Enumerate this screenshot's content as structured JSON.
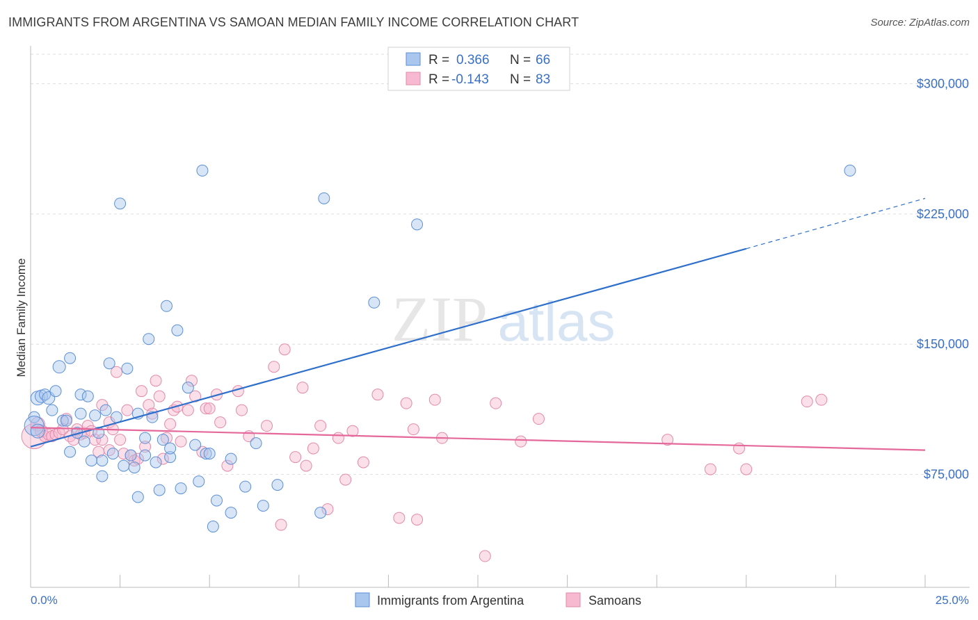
{
  "title": "IMMIGRANTS FROM ARGENTINA VS SAMOAN MEDIAN FAMILY INCOME CORRELATION CHART",
  "source": "Source: ZipAtlas.com",
  "watermark": {
    "zip": "ZIP",
    "atlas": "atlas"
  },
  "colors": {
    "blue_fill": "#a9c6ee",
    "blue_stroke": "#5b8fd6",
    "blue_line": "#2e6fcc",
    "pink_fill": "#f6b9cf",
    "pink_stroke": "#e38aa9",
    "pink_line": "#e4689a",
    "axis_label": "#3a6fc4",
    "grid": "#dddddd"
  },
  "legend_top": [
    {
      "r_label": "R =",
      "r_value": "0.366",
      "n_label": "N =",
      "n_value": "66"
    },
    {
      "r_label": "R =",
      "r_value": "-0.143",
      "n_label": "N =",
      "n_value": "83"
    }
  ],
  "chart_data": {
    "type": "scatter",
    "title": "IMMIGRANTS FROM ARGENTINA VS SAMOAN MEDIAN FAMILY INCOME CORRELATION CHART",
    "xlabel": "",
    "ylabel": "Median Family Income",
    "x_tick_labels": [
      "0.0%",
      "25.0%"
    ],
    "y_tick_labels": [
      "$75,000",
      "$150,000",
      "$225,000",
      "$300,000"
    ],
    "y_ticks": [
      75000,
      150000,
      225000,
      300000
    ],
    "xlim": [
      0,
      25
    ],
    "ylim": [
      10000,
      317000
    ],
    "grid": true,
    "legend_position": "bottom",
    "series": [
      {
        "name": "Immigrants from Argentina",
        "color": "blue",
        "R": 0.366,
        "N": 66,
        "trend": {
          "x0": 0.0,
          "y0": 91000,
          "x1": 20.0,
          "y1": 205000,
          "dashed_to_x": 25.0,
          "dashed_to_y": 234000
        },
        "points": [
          [
            0.2,
            119000,
            10
          ],
          [
            0.3,
            120000,
            9
          ],
          [
            0.4,
            121000,
            8
          ],
          [
            0.5,
            119000,
            9
          ],
          [
            0.1,
            108000,
            8
          ],
          [
            0.1,
            103000,
            14
          ],
          [
            0.2,
            100000,
            10
          ],
          [
            0.6,
            112000,
            8
          ],
          [
            0.7,
            123000,
            8
          ],
          [
            0.8,
            137000,
            9
          ],
          [
            0.9,
            106000,
            8
          ],
          [
            1.0,
            106000,
            8
          ],
          [
            1.1,
            142000,
            8
          ],
          [
            1.1,
            88000,
            8
          ],
          [
            1.3,
            99000,
            8
          ],
          [
            1.4,
            121000,
            8
          ],
          [
            1.4,
            110000,
            8
          ],
          [
            1.5,
            94000,
            8
          ],
          [
            1.6,
            120000,
            8
          ],
          [
            1.7,
            83000,
            8
          ],
          [
            1.8,
            109000,
            8
          ],
          [
            1.9,
            99000,
            8
          ],
          [
            2.0,
            83000,
            8
          ],
          [
            2.0,
            74000,
            8
          ],
          [
            2.1,
            112000,
            8
          ],
          [
            2.2,
            139000,
            8
          ],
          [
            2.3,
            87000,
            8
          ],
          [
            2.4,
            108000,
            8
          ],
          [
            2.5,
            231000,
            8
          ],
          [
            2.6,
            80000,
            8
          ],
          [
            2.7,
            136000,
            8
          ],
          [
            2.8,
            86000,
            8
          ],
          [
            2.9,
            79000,
            8
          ],
          [
            3.0,
            110000,
            8
          ],
          [
            3.0,
            62000,
            8
          ],
          [
            3.2,
            86000,
            8
          ],
          [
            3.2,
            96000,
            8
          ],
          [
            3.3,
            153000,
            8
          ],
          [
            3.4,
            108000,
            8
          ],
          [
            3.5,
            82000,
            8
          ],
          [
            3.6,
            66000,
            8
          ],
          [
            3.7,
            95000,
            8
          ],
          [
            3.8,
            172000,
            8
          ],
          [
            3.9,
            85000,
            8
          ],
          [
            3.9,
            90000,
            8
          ],
          [
            4.1,
            158000,
            8
          ],
          [
            4.2,
            67000,
            8
          ],
          [
            4.4,
            125000,
            8
          ],
          [
            4.6,
            92000,
            8
          ],
          [
            4.7,
            71000,
            8
          ],
          [
            4.8,
            250000,
            8
          ],
          [
            4.9,
            87000,
            8
          ],
          [
            5.0,
            87000,
            8
          ],
          [
            5.1,
            45000,
            8
          ],
          [
            5.2,
            60000,
            8
          ],
          [
            5.6,
            53000,
            8
          ],
          [
            5.6,
            84000,
            8
          ],
          [
            6.0,
            68000,
            8
          ],
          [
            6.3,
            93000,
            8
          ],
          [
            6.5,
            57000,
            8
          ],
          [
            6.9,
            69000,
            8
          ],
          [
            8.1,
            53000,
            8
          ],
          [
            8.2,
            234000,
            8
          ],
          [
            9.6,
            174000,
            8
          ],
          [
            10.8,
            219000,
            8
          ],
          [
            22.9,
            250000,
            8
          ]
        ]
      },
      {
        "name": "Samoans",
        "color": "pink",
        "R": -0.143,
        "N": 83,
        "trend": {
          "x0": 0.0,
          "y0": 102000,
          "x1": 25.0,
          "y1": 89000
        },
        "points": [
          [
            0.1,
            97000,
            18
          ],
          [
            0.2,
            104000,
            10
          ],
          [
            0.3,
            100000,
            9
          ],
          [
            0.4,
            97000,
            8
          ],
          [
            0.5,
            98000,
            8
          ],
          [
            0.6,
            97000,
            8
          ],
          [
            0.7,
            98000,
            8
          ],
          [
            0.8,
            99000,
            8
          ],
          [
            0.9,
            101000,
            8
          ],
          [
            1.0,
            107000,
            8
          ],
          [
            1.1,
            97000,
            8
          ],
          [
            1.2,
            95000,
            8
          ],
          [
            1.3,
            101000,
            8
          ],
          [
            1.4,
            98000,
            8
          ],
          [
            1.5,
            99000,
            8
          ],
          [
            1.6,
            103000,
            8
          ],
          [
            1.7,
            100000,
            8
          ],
          [
            1.8,
            95000,
            8
          ],
          [
            1.9,
            88000,
            8
          ],
          [
            2.0,
            95000,
            8
          ],
          [
            2.0,
            115000,
            8
          ],
          [
            2.2,
            105000,
            8
          ],
          [
            2.2,
            89000,
            8
          ],
          [
            2.3,
            101000,
            8
          ],
          [
            2.4,
            134000,
            8
          ],
          [
            2.5,
            95000,
            8
          ],
          [
            2.6,
            87000,
            8
          ],
          [
            2.7,
            112000,
            8
          ],
          [
            2.8,
            86000,
            8
          ],
          [
            2.9,
            83000,
            8
          ],
          [
            3.0,
            84000,
            8
          ],
          [
            3.1,
            123000,
            8
          ],
          [
            3.2,
            91000,
            8
          ],
          [
            3.3,
            115000,
            8
          ],
          [
            3.4,
            110000,
            8
          ],
          [
            3.5,
            129000,
            8
          ],
          [
            3.6,
            120000,
            8
          ],
          [
            3.7,
            84000,
            8
          ],
          [
            3.8,
            96000,
            8
          ],
          [
            3.9,
            104000,
            8
          ],
          [
            4.0,
            112000,
            8
          ],
          [
            4.1,
            114000,
            8
          ],
          [
            4.2,
            94000,
            8
          ],
          [
            4.4,
            112000,
            8
          ],
          [
            4.5,
            129000,
            8
          ],
          [
            4.6,
            120000,
            8
          ],
          [
            4.8,
            88000,
            8
          ],
          [
            4.9,
            113000,
            8
          ],
          [
            5.0,
            113000,
            8
          ],
          [
            5.2,
            121000,
            8
          ],
          [
            5.3,
            105000,
            8
          ],
          [
            5.5,
            80000,
            8
          ],
          [
            5.8,
            123000,
            8
          ],
          [
            5.9,
            112000,
            8
          ],
          [
            6.1,
            97000,
            8
          ],
          [
            6.6,
            103000,
            8
          ],
          [
            6.8,
            137000,
            8
          ],
          [
            7.0,
            46000,
            8
          ],
          [
            7.1,
            147000,
            8
          ],
          [
            7.4,
            85000,
            8
          ],
          [
            7.6,
            125000,
            8
          ],
          [
            7.7,
            80000,
            8
          ],
          [
            7.9,
            90000,
            8
          ],
          [
            8.1,
            103000,
            8
          ],
          [
            8.3,
            55000,
            8
          ],
          [
            8.6,
            96000,
            8
          ],
          [
            8.8,
            72000,
            8
          ],
          [
            9.0,
            100000,
            8
          ],
          [
            9.3,
            82000,
            8
          ],
          [
            9.7,
            121000,
            8
          ],
          [
            10.3,
            50000,
            8
          ],
          [
            10.5,
            116000,
            8
          ],
          [
            10.7,
            101000,
            8
          ],
          [
            10.8,
            49000,
            8
          ],
          [
            11.3,
            118000,
            8
          ],
          [
            11.5,
            96000,
            8
          ],
          [
            12.7,
            28000,
            8
          ],
          [
            13.0,
            116000,
            8
          ],
          [
            13.7,
            94000,
            8
          ],
          [
            14.2,
            107000,
            8
          ],
          [
            17.8,
            95000,
            8
          ],
          [
            19.8,
            90000,
            8
          ],
          [
            21.7,
            117000,
            8
          ]
        ]
      }
    ],
    "extra_points_pink": [
      [
        19.0,
        78000,
        8
      ],
      [
        20.0,
        78000,
        8
      ],
      [
        22.1,
        118000,
        8
      ]
    ]
  },
  "legend_bottom": [
    {
      "label": "Immigrants from Argentina",
      "color": "blue"
    },
    {
      "label": "Samoans",
      "color": "pink"
    }
  ]
}
